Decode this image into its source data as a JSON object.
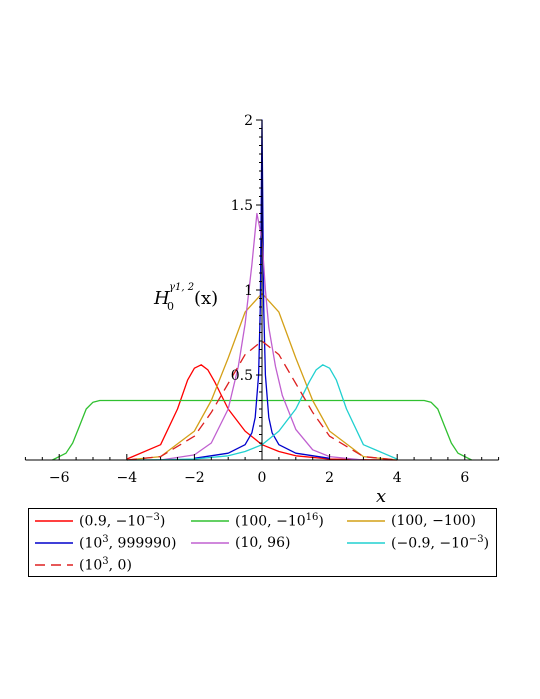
{
  "chart_data": {
    "type": "line",
    "xlabel": "x",
    "ylabel_main": "H",
    "ylabel_sub": "0",
    "ylabel_sup": "γ1, 2",
    "ylabel_arg": "(x)",
    "xlim": [
      -7,
      7
    ],
    "ylim": [
      0,
      2
    ],
    "x_ticks": [
      -6,
      -4,
      -2,
      0,
      2,
      4,
      6
    ],
    "x_tick_labels": [
      "−6",
      "−4",
      "−2",
      "0",
      "2",
      "4",
      "6"
    ],
    "y_ticks": [
      0.5,
      1,
      1.5,
      2
    ],
    "y_tick_labels": [
      "0.5",
      "1",
      "1.5",
      "2"
    ],
    "grid": false,
    "legend_position": "bottom",
    "series": [
      {
        "name": "(0.9, −10^−3)",
        "label_main": "(0.9, −10",
        "label_sup": "−3",
        "label_tail": ")",
        "color": "#ff0000",
        "dash": "solid",
        "x": [
          -4.0,
          -3.0,
          -2.5,
          -2.2,
          -2.0,
          -1.8,
          -1.6,
          -1.4,
          -1.2,
          -1.0,
          -0.5,
          0.0,
          0.5,
          1.0,
          2.0,
          3.0,
          4.0
        ],
        "y": [
          0.005,
          0.09,
          0.3,
          0.47,
          0.54,
          0.56,
          0.53,
          0.46,
          0.38,
          0.3,
          0.17,
          0.09,
          0.05,
          0.025,
          0.006,
          0.001,
          0.0
        ]
      },
      {
        "name": "(100, −10^16)",
        "label_main": "(100, −10",
        "label_sup": "16",
        "label_tail": ")",
        "color": "#30c030",
        "dash": "solid",
        "x": [
          -6.2,
          -5.8,
          -5.6,
          -5.4,
          -5.2,
          -5.0,
          -4.8,
          -4.5,
          0.0,
          4.5,
          4.8,
          5.0,
          5.2,
          5.4,
          5.6,
          5.8,
          6.2
        ],
        "y": [
          0.0,
          0.04,
          0.1,
          0.2,
          0.3,
          0.34,
          0.35,
          0.35,
          0.35,
          0.35,
          0.35,
          0.34,
          0.3,
          0.2,
          0.1,
          0.04,
          0.0
        ]
      },
      {
        "name": "(100, −100)",
        "label_main": "(100, −100)",
        "label_sup": "",
        "label_tail": "",
        "color": "#d4a017",
        "dash": "solid",
        "x": [
          -4.0,
          -3.0,
          -2.0,
          -1.5,
          -1.0,
          -0.5,
          0.0,
          0.5,
          1.0,
          1.5,
          2.0,
          3.0,
          4.0
        ],
        "y": [
          0.0,
          0.02,
          0.17,
          0.35,
          0.6,
          0.87,
          0.98,
          0.87,
          0.6,
          0.35,
          0.17,
          0.02,
          0.0
        ]
      },
      {
        "name": "(10^3, 999990)",
        "label_main": "(10",
        "label_sup": "3",
        "label_tail": ", 999990)",
        "color": "#0000cc",
        "dash": "solid",
        "x": [
          -2.0,
          -1.0,
          -0.5,
          -0.3,
          -0.2,
          -0.1,
          -0.05,
          0.0,
          0.05,
          0.1,
          0.2,
          0.3,
          0.5,
          1.0,
          2.0
        ],
        "y": [
          0.01,
          0.04,
          0.09,
          0.16,
          0.25,
          0.5,
          0.9,
          2.0,
          0.9,
          0.5,
          0.25,
          0.16,
          0.09,
          0.04,
          0.01
        ]
      },
      {
        "name": "(10, 96)",
        "label_main": "(10, 96)",
        "label_sup": "",
        "label_tail": "",
        "color": "#c060d0",
        "dash": "solid",
        "x": [
          -3.0,
          -2.0,
          -1.5,
          -1.0,
          -0.7,
          -0.5,
          -0.3,
          -0.15,
          0.0,
          0.1,
          0.2,
          0.4,
          0.6,
          1.0,
          1.5,
          2.0,
          3.0
        ],
        "y": [
          0.0,
          0.03,
          0.1,
          0.3,
          0.55,
          0.8,
          1.15,
          1.45,
          1.3,
          1.0,
          0.78,
          0.55,
          0.38,
          0.18,
          0.06,
          0.02,
          0.0
        ]
      },
      {
        "name": "(−0.9, −10^−3)",
        "label_main": "(−0.9, −10",
        "label_sup": "−3",
        "label_tail": ")",
        "color": "#20d0d0",
        "dash": "solid",
        "x": [
          -4.0,
          -3.0,
          -2.0,
          -1.0,
          -0.5,
          0.0,
          0.5,
          1.0,
          1.2,
          1.4,
          1.6,
          1.8,
          2.0,
          2.2,
          2.5,
          3.0,
          4.0
        ],
        "y": [
          0.0,
          0.001,
          0.006,
          0.025,
          0.05,
          0.09,
          0.17,
          0.3,
          0.38,
          0.46,
          0.53,
          0.56,
          0.54,
          0.47,
          0.3,
          0.09,
          0.005
        ]
      },
      {
        "name": "(10^3, 0)",
        "label_main": "(10",
        "label_sup": "3",
        "label_tail": ", 0)",
        "color": "#dd2020",
        "dash": "dashed",
        "x": [
          -4.0,
          -3.0,
          -2.0,
          -1.5,
          -1.0,
          -0.5,
          0.0,
          0.5,
          1.0,
          1.5,
          2.0,
          3.0,
          4.0
        ],
        "y": [
          0.0,
          0.02,
          0.14,
          0.28,
          0.45,
          0.62,
          0.7,
          0.62,
          0.45,
          0.28,
          0.14,
          0.02,
          0.0
        ]
      }
    ]
  }
}
